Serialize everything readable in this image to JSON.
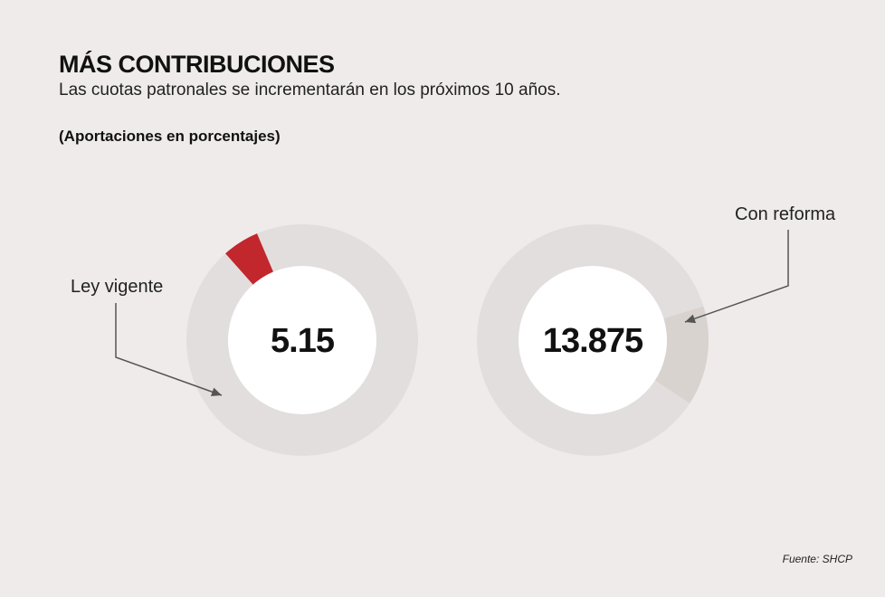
{
  "header": {
    "title": "MÁS CONTRIBUCIONES",
    "subtitle": "Las cuotas patronales se incrementarán en los próximos 10 años.",
    "unit": "(Aportaciones en porcentajes)"
  },
  "footer": {
    "source": "Fuente: SHCP"
  },
  "colors": {
    "background": "#efebea",
    "ring": "#e2dedd",
    "ley_vigente": "#c1272d",
    "con_reforma": "#d9d3cf",
    "hole": "#ffffff"
  },
  "chart_data": [
    {
      "type": "pie",
      "title": "",
      "series": [
        {
          "name": "Ley vigente",
          "value": 5.15
        }
      ],
      "total": 100,
      "center_label": "5.15",
      "callout": "Ley vigente"
    },
    {
      "type": "pie",
      "title": "",
      "series": [
        {
          "name": "Con reforma",
          "value": 13.875
        }
      ],
      "total": 100,
      "center_label": "13.875",
      "callout": "Con reforma"
    }
  ]
}
